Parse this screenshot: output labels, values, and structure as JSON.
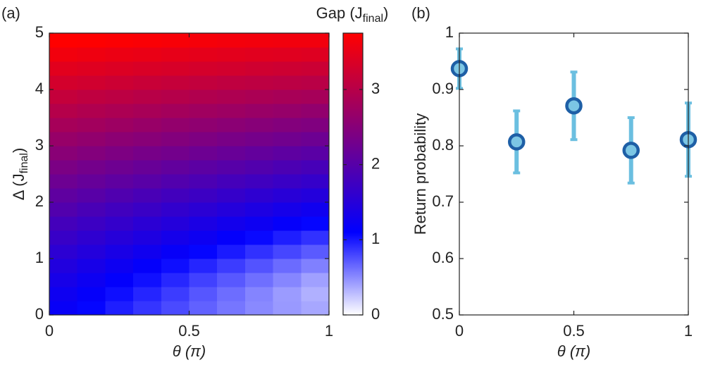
{
  "chart_data": [
    {
      "type": "heatmap",
      "panel_label": "(a)",
      "xlabel": "θ (π)",
      "ylabel": [
        "Δ (J",
        "final",
        ")"
      ],
      "colorbar_label": [
        "Gap (J",
        "final",
        ")"
      ],
      "x": [
        0.05,
        0.15,
        0.25,
        0.35,
        0.45,
        0.55,
        0.65,
        0.75,
        0.85,
        0.95
      ],
      "y": [
        0.125,
        0.375,
        0.625,
        0.875,
        1.125,
        1.375,
        1.625,
        1.875,
        2.125,
        2.375,
        2.625,
        2.875,
        3.125,
        3.375,
        3.625,
        3.875,
        4.125,
        4.375,
        4.625,
        4.875
      ],
      "values": [
        [
          1.18,
          1.08,
          0.97,
          0.87,
          0.78,
          0.68,
          0.59,
          0.51,
          0.44,
          0.38
        ],
        [
          1.25,
          1.15,
          1.04,
          0.94,
          0.84,
          0.73,
          0.63,
          0.53,
          0.43,
          0.34
        ],
        [
          1.34,
          1.24,
          1.13,
          1.03,
          0.93,
          0.82,
          0.72,
          0.62,
          0.52,
          0.41
        ],
        [
          1.44,
          1.34,
          1.24,
          1.14,
          1.04,
          0.94,
          0.84,
          0.74,
          0.64,
          0.55
        ],
        [
          1.56,
          1.46,
          1.36,
          1.27,
          1.17,
          1.08,
          0.99,
          0.89,
          0.8,
          0.71
        ],
        [
          1.68,
          1.59,
          1.5,
          1.41,
          1.32,
          1.23,
          1.14,
          1.06,
          0.97,
          0.89
        ],
        [
          1.81,
          1.72,
          1.64,
          1.55,
          1.47,
          1.38,
          1.3,
          1.23,
          1.15,
          1.08
        ],
        [
          1.95,
          1.86,
          1.78,
          1.7,
          1.62,
          1.55,
          1.47,
          1.4,
          1.33,
          1.27
        ],
        [
          2.09,
          2.01,
          1.93,
          1.86,
          1.79,
          1.72,
          1.65,
          1.58,
          1.52,
          1.46
        ],
        [
          2.23,
          2.16,
          2.09,
          2.02,
          1.95,
          1.89,
          1.82,
          1.76,
          1.7,
          1.65
        ],
        [
          2.38,
          2.31,
          2.24,
          2.18,
          2.12,
          2.06,
          2.0,
          1.95,
          1.89,
          1.84
        ],
        [
          2.52,
          2.46,
          2.4,
          2.34,
          2.29,
          2.23,
          2.18,
          2.13,
          2.08,
          2.04
        ],
        [
          2.67,
          2.62,
          2.56,
          2.51,
          2.46,
          2.41,
          2.36,
          2.32,
          2.27,
          2.23
        ],
        [
          2.83,
          2.78,
          2.73,
          2.68,
          2.63,
          2.59,
          2.54,
          2.5,
          2.46,
          2.43
        ],
        [
          2.98,
          2.93,
          2.89,
          2.85,
          2.8,
          2.76,
          2.73,
          2.69,
          2.66,
          2.62
        ],
        [
          3.14,
          3.09,
          3.05,
          3.01,
          2.98,
          2.94,
          2.91,
          2.88,
          2.85,
          2.82
        ],
        [
          3.29,
          3.26,
          3.22,
          3.18,
          3.15,
          3.12,
          3.09,
          3.06,
          3.04,
          3.02
        ],
        [
          3.45,
          3.42,
          3.39,
          3.36,
          3.33,
          3.3,
          3.28,
          3.25,
          3.23,
          3.21
        ],
        [
          3.61,
          3.58,
          3.55,
          3.53,
          3.5,
          3.48,
          3.46,
          3.44,
          3.43,
          3.41
        ],
        [
          3.77,
          3.74,
          3.72,
          3.7,
          3.68,
          3.66,
          3.64,
          3.63,
          3.62,
          3.61
        ]
      ],
      "xlim": [
        0,
        1
      ],
      "ylim": [
        0,
        5
      ],
      "xticks": [
        0,
        0.5,
        1
      ],
      "yticks": [
        0,
        1,
        2,
        3,
        4,
        5
      ],
      "zlim": [
        0,
        3.75
      ],
      "zticks": [
        0,
        1,
        2,
        3
      ],
      "colormap": [
        {
          "value": 0,
          "color": "#ffffff"
        },
        {
          "value": 1.1,
          "color": "#0000ff"
        },
        {
          "value": 3.75,
          "color": "#ff0000"
        }
      ]
    },
    {
      "type": "scatter",
      "panel_label": "(b)",
      "xlabel": "θ (π)",
      "ylabel": "Return probability",
      "x": [
        0,
        0.25,
        0.5,
        0.75,
        1
      ],
      "values": [
        0.937,
        0.807,
        0.871,
        0.792,
        0.811
      ],
      "errors": [
        0.035,
        0.055,
        0.06,
        0.058,
        0.065
      ],
      "xlim": [
        0,
        1
      ],
      "ylim": [
        0.5,
        1
      ],
      "xticks": [
        0,
        0.5,
        1
      ],
      "yticks": [
        0.5,
        0.6,
        0.7,
        0.8,
        0.9,
        1
      ],
      "color": "#7cc6e4",
      "edge_color": "#1e5fa6",
      "error_color": "#6bbfe0"
    }
  ]
}
